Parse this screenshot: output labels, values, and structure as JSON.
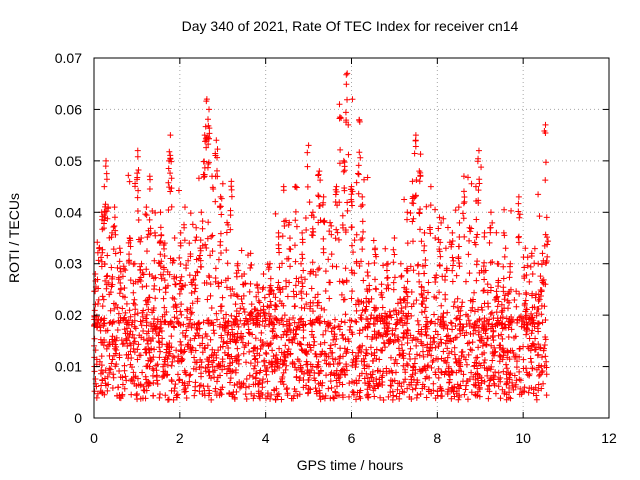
{
  "chart_data": {
    "type": "scatter",
    "title": "Day 340 of 2021, Rate Of TEC Index for receiver cn14",
    "xlabel": "GPS time / hours",
    "ylabel": "ROTI / TECUs",
    "xlim": [
      0,
      12
    ],
    "ylim": [
      0,
      0.07
    ],
    "xticks": [
      "0",
      "2",
      "4",
      "6",
      "8",
      "10",
      "12"
    ],
    "yticks": [
      "0",
      "0.01",
      "0.02",
      "0.03",
      "0.04",
      "0.05",
      "0.06",
      "0.07"
    ],
    "grid": true,
    "marker": "plus",
    "color": "#ff0000",
    "time_range_hours": [
      0.0,
      10.55
    ],
    "baseline_band": [
      0.005,
      0.018
    ],
    "envelope": [
      {
        "x": 0.0,
        "y": 0.03
      },
      {
        "x": 0.25,
        "y": 0.05
      },
      {
        "x": 0.5,
        "y": 0.041
      },
      {
        "x": 1.0,
        "y": 0.052
      },
      {
        "x": 1.3,
        "y": 0.047
      },
      {
        "x": 1.8,
        "y": 0.055
      },
      {
        "x": 2.2,
        "y": 0.041
      },
      {
        "x": 2.65,
        "y": 0.062
      },
      {
        "x": 2.85,
        "y": 0.054
      },
      {
        "x": 3.2,
        "y": 0.046
      },
      {
        "x": 3.6,
        "y": 0.035
      },
      {
        "x": 4.4,
        "y": 0.045
      },
      {
        "x": 4.7,
        "y": 0.045
      },
      {
        "x": 5.0,
        "y": 0.053
      },
      {
        "x": 5.3,
        "y": 0.048
      },
      {
        "x": 5.7,
        "y": 0.061
      },
      {
        "x": 5.9,
        "y": 0.067
      },
      {
        "x": 6.2,
        "y": 0.058
      },
      {
        "x": 6.6,
        "y": 0.033
      },
      {
        "x": 7.0,
        "y": 0.035
      },
      {
        "x": 7.5,
        "y": 0.055
      },
      {
        "x": 7.9,
        "y": 0.045
      },
      {
        "x": 8.3,
        "y": 0.036
      },
      {
        "x": 8.6,
        "y": 0.047
      },
      {
        "x": 8.95,
        "y": 0.052
      },
      {
        "x": 9.3,
        "y": 0.04
      },
      {
        "x": 9.9,
        "y": 0.043
      },
      {
        "x": 10.2,
        "y": 0.032
      },
      {
        "x": 10.5,
        "y": 0.057
      }
    ],
    "peaks": [
      {
        "x": 0.03,
        "y": 0.028
      },
      {
        "x": 0.12,
        "y": 0.033
      },
      {
        "x": 0.18,
        "y": 0.04
      },
      {
        "x": 0.24,
        "y": 0.045
      },
      {
        "x": 0.28,
        "y": 0.05
      },
      {
        "x": 0.33,
        "y": 0.041
      },
      {
        "x": 0.42,
        "y": 0.036
      },
      {
        "x": 0.48,
        "y": 0.041
      },
      {
        "x": 0.6,
        "y": 0.033
      },
      {
        "x": 0.7,
        "y": 0.029
      },
      {
        "x": 0.83,
        "y": 0.035
      },
      {
        "x": 0.95,
        "y": 0.03
      },
      {
        "x": 1.02,
        "y": 0.052
      },
      {
        "x": 1.1,
        "y": 0.035
      },
      {
        "x": 1.22,
        "y": 0.041
      },
      {
        "x": 1.3,
        "y": 0.047
      },
      {
        "x": 1.42,
        "y": 0.036
      },
      {
        "x": 1.55,
        "y": 0.04
      },
      {
        "x": 1.65,
        "y": 0.034
      },
      {
        "x": 1.75,
        "y": 0.05
      },
      {
        "x": 1.78,
        "y": 0.055
      },
      {
        "x": 1.88,
        "y": 0.035
      },
      {
        "x": 2.02,
        "y": 0.036
      },
      {
        "x": 2.12,
        "y": 0.041
      },
      {
        "x": 2.22,
        "y": 0.034
      },
      {
        "x": 2.38,
        "y": 0.037
      },
      {
        "x": 2.5,
        "y": 0.04
      },
      {
        "x": 2.58,
        "y": 0.055
      },
      {
        "x": 2.63,
        "y": 0.062
      },
      {
        "x": 2.68,
        "y": 0.06
      },
      {
        "x": 2.75,
        "y": 0.047
      },
      {
        "x": 2.85,
        "y": 0.054
      },
      {
        "x": 2.95,
        "y": 0.043
      },
      {
        "x": 3.1,
        "y": 0.038
      },
      {
        "x": 3.2,
        "y": 0.046
      },
      {
        "x": 3.35,
        "y": 0.03
      },
      {
        "x": 3.5,
        "y": 0.028
      },
      {
        "x": 3.65,
        "y": 0.032
      },
      {
        "x": 3.8,
        "y": 0.026
      },
      {
        "x": 3.95,
        "y": 0.028
      },
      {
        "x": 4.1,
        "y": 0.03
      },
      {
        "x": 4.3,
        "y": 0.036
      },
      {
        "x": 4.42,
        "y": 0.045
      },
      {
        "x": 4.55,
        "y": 0.038
      },
      {
        "x": 4.7,
        "y": 0.045
      },
      {
        "x": 4.85,
        "y": 0.036
      },
      {
        "x": 5.0,
        "y": 0.053
      },
      {
        "x": 5.1,
        "y": 0.04
      },
      {
        "x": 5.25,
        "y": 0.048
      },
      {
        "x": 5.35,
        "y": 0.043
      },
      {
        "x": 5.5,
        "y": 0.038
      },
      {
        "x": 5.65,
        "y": 0.045
      },
      {
        "x": 5.72,
        "y": 0.061
      },
      {
        "x": 5.82,
        "y": 0.05
      },
      {
        "x": 5.9,
        "y": 0.067
      },
      {
        "x": 6.0,
        "y": 0.045
      },
      {
        "x": 6.18,
        "y": 0.058
      },
      {
        "x": 6.25,
        "y": 0.043
      },
      {
        "x": 6.4,
        "y": 0.03
      },
      {
        "x": 6.55,
        "y": 0.033
      },
      {
        "x": 6.7,
        "y": 0.026
      },
      {
        "x": 6.85,
        "y": 0.03
      },
      {
        "x": 7.0,
        "y": 0.035
      },
      {
        "x": 7.15,
        "y": 0.03
      },
      {
        "x": 7.3,
        "y": 0.04
      },
      {
        "x": 7.42,
        "y": 0.046
      },
      {
        "x": 7.5,
        "y": 0.055
      },
      {
        "x": 7.58,
        "y": 0.048
      },
      {
        "x": 7.7,
        "y": 0.036
      },
      {
        "x": 7.85,
        "y": 0.045
      },
      {
        "x": 7.95,
        "y": 0.035
      },
      {
        "x": 8.05,
        "y": 0.039
      },
      {
        "x": 8.2,
        "y": 0.033
      },
      {
        "x": 8.35,
        "y": 0.036
      },
      {
        "x": 8.5,
        "y": 0.041
      },
      {
        "x": 8.62,
        "y": 0.047
      },
      {
        "x": 8.75,
        "y": 0.037
      },
      {
        "x": 8.9,
        "y": 0.045
      },
      {
        "x": 8.97,
        "y": 0.052
      },
      {
        "x": 9.1,
        "y": 0.036
      },
      {
        "x": 9.25,
        "y": 0.04
      },
      {
        "x": 9.4,
        "y": 0.03
      },
      {
        "x": 9.55,
        "y": 0.036
      },
      {
        "x": 9.7,
        "y": 0.03
      },
      {
        "x": 9.9,
        "y": 0.043
      },
      {
        "x": 10.05,
        "y": 0.033
      },
      {
        "x": 10.2,
        "y": 0.032
      },
      {
        "x": 10.35,
        "y": 0.03
      },
      {
        "x": 10.45,
        "y": 0.032
      },
      {
        "x": 10.52,
        "y": 0.057
      },
      {
        "x": 10.55,
        "y": 0.039
      }
    ]
  }
}
